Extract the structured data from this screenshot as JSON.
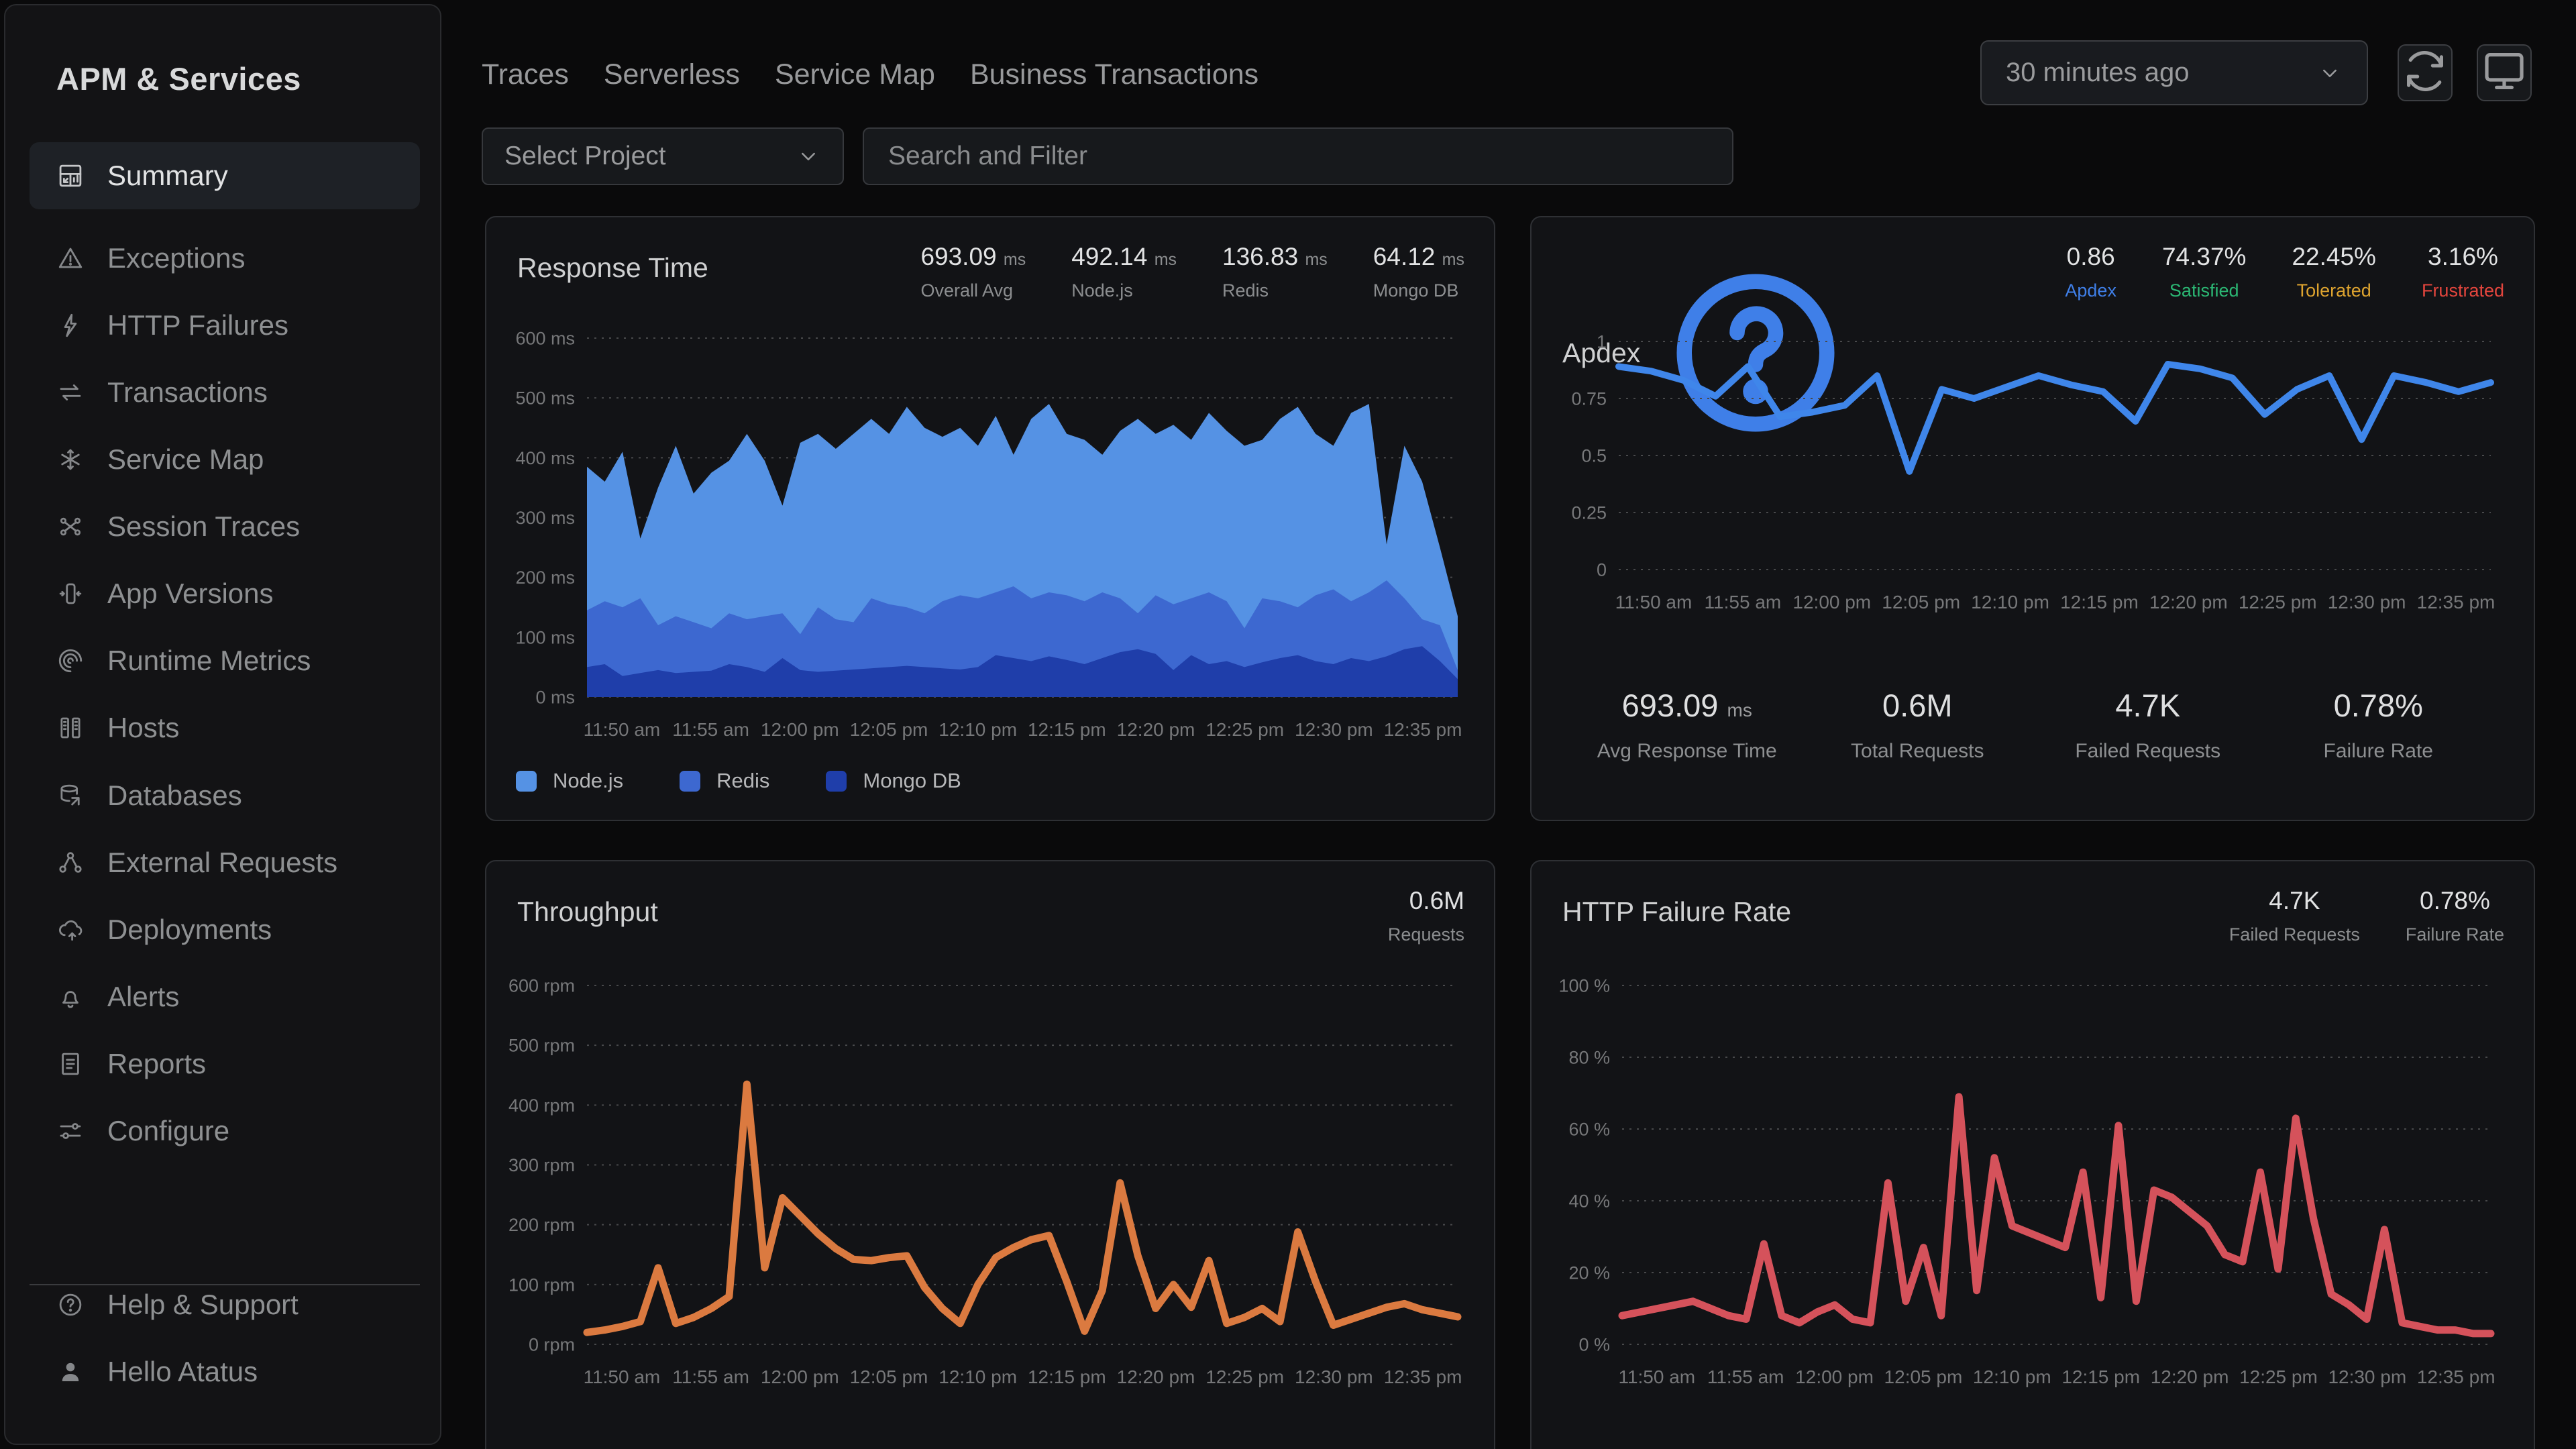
{
  "sidebar": {
    "title": "APM & Services",
    "items": [
      {
        "label": "Summary",
        "icon": "grid-dashboard"
      },
      {
        "label": "Exceptions",
        "icon": "warning-triangle"
      },
      {
        "label": "HTTP Failures",
        "icon": "lightning"
      },
      {
        "label": "Transactions",
        "icon": "swap-arrows"
      },
      {
        "label": "Service Map",
        "icon": "snowflake"
      },
      {
        "label": "Session Traces",
        "icon": "node-cross"
      },
      {
        "label": "App Versions",
        "icon": "mobile-arrows"
      },
      {
        "label": "Runtime Metrics",
        "icon": "concentric-arcs"
      },
      {
        "label": "Hosts",
        "icon": "server-columns"
      },
      {
        "label": "Databases",
        "icon": "database-cylinder"
      },
      {
        "label": "External Requests",
        "icon": "share-nodes"
      },
      {
        "label": "Deployments",
        "icon": "cloud-upload"
      },
      {
        "label": "Alerts",
        "icon": "bell"
      },
      {
        "label": "Reports",
        "icon": "document-lines"
      },
      {
        "label": "Configure",
        "icon": "sliders"
      }
    ],
    "footer_items": [
      {
        "label": "Help & Support",
        "icon": "question-circle-gray"
      },
      {
        "label": "Hello Atatus",
        "icon": "person"
      }
    ]
  },
  "topnav": {
    "tabs": [
      {
        "label": "Traces"
      },
      {
        "label": "Serverless"
      },
      {
        "label": "Service Map"
      },
      {
        "label": "Business Transactions"
      }
    ],
    "time_range": "30 minutes ago"
  },
  "filters": {
    "project_placeholder": "Select Project",
    "search_placeholder": "Search and Filter"
  },
  "panels": {
    "response_time": {
      "title": "Response Time",
      "stats": [
        {
          "value": "693.09",
          "unit": "ms",
          "label": "Overall Avg"
        },
        {
          "value": "492.14",
          "unit": "ms",
          "label": "Node.js"
        },
        {
          "value": "136.83",
          "unit": "ms",
          "label": "Redis"
        },
        {
          "value": "64.12",
          "unit": "ms",
          "label": "Mongo DB"
        }
      ],
      "legend": [
        {
          "label": "Node.js",
          "color": "#5592e4"
        },
        {
          "label": "Redis",
          "color": "#3d68d0"
        },
        {
          "label": "Mongo DB",
          "color": "#1f3eaa"
        }
      ]
    },
    "apdex": {
      "title": "Apdex",
      "stats": [
        {
          "value": "0.86",
          "label": "Apdex",
          "color": "#3f7fe8"
        },
        {
          "value": "74.37%",
          "label": "Satisfied",
          "color": "#2bb673"
        },
        {
          "value": "22.45%",
          "label": "Tolerated",
          "color": "#dda32f"
        },
        {
          "value": "3.16%",
          "label": "Frustrated",
          "color": "#e2453d"
        }
      ],
      "bottom_stats": [
        {
          "value": "693.09",
          "unit": "ms",
          "label": "Avg Response Time"
        },
        {
          "value": "0.6M",
          "unit": "",
          "label": "Total Requests"
        },
        {
          "value": "4.7K",
          "unit": "",
          "label": "Failed Requests"
        },
        {
          "value": "0.78%",
          "unit": "",
          "label": "Failure Rate"
        }
      ]
    },
    "throughput": {
      "title": "Throughput",
      "stats": [
        {
          "value": "0.6M",
          "label": "Requests"
        }
      ]
    },
    "http_failure_rate": {
      "title": "HTTP Failure Rate",
      "stats": [
        {
          "value": "4.7K",
          "label": "Failed Requests"
        },
        {
          "value": "0.78%",
          "label": "Failure Rate"
        }
      ]
    }
  },
  "chart_data": [
    {
      "id": "response_time",
      "type": "area",
      "stacked": true,
      "title": "Response Time",
      "ylabel": "ms",
      "ylim": [
        0,
        600
      ],
      "y_tick_values": [
        0,
        100,
        200,
        300,
        400,
        500,
        600
      ],
      "y_tick_labels": [
        "0 ms",
        "100 ms",
        "200 ms",
        "300 ms",
        "400 ms",
        "500 ms",
        "600 ms"
      ],
      "x_tick_labels": [
        "11:50 am",
        "11:55 am",
        "12:00 pm",
        "12:05 pm",
        "12:10 pm",
        "12:15 pm",
        "12:20 pm",
        "12:25 pm",
        "12:30 pm",
        "12:35 pm"
      ],
      "grid": true,
      "legend_position": "bottom",
      "series": [
        {
          "name": "Node.js",
          "color": "#5592e4",
          "cum_values": [
            385,
            360,
            410,
            265,
            350,
            420,
            340,
            375,
            395,
            440,
            395,
            320,
            425,
            440,
            415,
            440,
            465,
            440,
            485,
            450,
            435,
            450,
            420,
            470,
            405,
            465,
            490,
            440,
            430,
            405,
            445,
            465,
            440,
            455,
            430,
            475,
            445,
            420,
            430,
            465,
            485,
            440,
            420,
            475,
            490,
            255,
            420,
            360,
            250,
            135
          ]
        },
        {
          "name": "Redis",
          "color": "#3d68d0",
          "cum_values": [
            145,
            160,
            150,
            165,
            120,
            135,
            125,
            115,
            140,
            130,
            135,
            140,
            105,
            150,
            130,
            125,
            165,
            155,
            150,
            140,
            160,
            170,
            165,
            175,
            185,
            165,
            175,
            170,
            160,
            175,
            165,
            140,
            170,
            155,
            165,
            175,
            160,
            115,
            165,
            160,
            150,
            170,
            180,
            160,
            175,
            195,
            165,
            130,
            120,
            45
          ]
        },
        {
          "name": "Mongo DB",
          "color": "#1f3eaa",
          "cum_values": [
            50,
            55,
            35,
            40,
            45,
            40,
            42,
            44,
            55,
            50,
            42,
            65,
            45,
            42,
            44,
            46,
            48,
            50,
            52,
            50,
            48,
            46,
            50,
            70,
            65,
            60,
            68,
            62,
            55,
            65,
            75,
            80,
            72,
            45,
            70,
            55,
            60,
            50,
            58,
            65,
            70,
            60,
            55,
            65,
            60,
            68,
            80,
            85,
            60,
            30
          ]
        }
      ]
    },
    {
      "id": "apdex",
      "type": "line",
      "title": "Apdex",
      "color": "#3f86ea",
      "stroke_width": 10,
      "ylim": [
        0,
        1
      ],
      "y_tick_values": [
        0,
        0.25,
        0.5,
        0.75,
        1
      ],
      "y_tick_labels": [
        "0",
        "0.25",
        "0.5",
        "0.75",
        "1"
      ],
      "x_tick_labels": [
        "11:50 am",
        "11:55 am",
        "12:00 pm",
        "12:05 pm",
        "12:10 pm",
        "12:15 pm",
        "12:20 pm",
        "12:25 pm",
        "12:30 pm",
        "12:35 pm"
      ],
      "grid": true,
      "values": [
        0.89,
        0.87,
        0.83,
        0.76,
        0.89,
        0.67,
        0.69,
        0.72,
        0.85,
        0.43,
        0.79,
        0.75,
        0.8,
        0.85,
        0.81,
        0.78,
        0.65,
        0.9,
        0.88,
        0.84,
        0.68,
        0.79,
        0.85,
        0.57,
        0.85,
        0.82,
        0.78,
        0.82
      ]
    },
    {
      "id": "throughput",
      "type": "line",
      "title": "Throughput",
      "ylabel": "rpm",
      "color": "#db7a40",
      "stroke_width": 11,
      "ylim": [
        0,
        600
      ],
      "y_tick_values": [
        0,
        100,
        200,
        300,
        400,
        500,
        600
      ],
      "y_tick_labels": [
        "0 rpm",
        "100 rpm",
        "200 rpm",
        "300 rpm",
        "400 rpm",
        "500 rpm",
        "600 rpm"
      ],
      "x_tick_labels": [
        "11:50 am",
        "11:55 am",
        "12:00 pm",
        "12:05 pm",
        "12:10 pm",
        "12:15 pm",
        "12:20 pm",
        "12:25 pm",
        "12:30 pm",
        "12:35 pm"
      ],
      "grid": true,
      "values": [
        20,
        24,
        30,
        38,
        128,
        35,
        45,
        60,
        80,
        435,
        128,
        245,
        215,
        185,
        160,
        142,
        140,
        145,
        148,
        95,
        60,
        35,
        100,
        145,
        162,
        175,
        182,
        105,
        22,
        90,
        270,
        148,
        60,
        100,
        62,
        140,
        35,
        45,
        60,
        38,
        188,
        105,
        32,
        42,
        52,
        62,
        68,
        58,
        52,
        46
      ]
    },
    {
      "id": "http_failure_rate",
      "type": "line",
      "title": "HTTP Failure Rate",
      "ylabel": "%",
      "color": "#d5525b",
      "stroke_width": 11,
      "ylim": [
        0,
        100
      ],
      "y_tick_values": [
        0,
        20,
        40,
        60,
        80,
        100
      ],
      "y_tick_labels": [
        "0 %",
        "20 %",
        "40 %",
        "60 %",
        "80 %",
        "100 %"
      ],
      "x_tick_labels": [
        "11:50 am",
        "11:55 am",
        "12:00 pm",
        "12:05 pm",
        "12:10 pm",
        "12:15 pm",
        "12:20 pm",
        "12:25 pm",
        "12:30 pm",
        "12:35 pm"
      ],
      "grid": true,
      "values": [
        8,
        9,
        10,
        11,
        12,
        10,
        8,
        7,
        28,
        8,
        6,
        9,
        11,
        7,
        6,
        45,
        12,
        27,
        8,
        69,
        15,
        52,
        33,
        31,
        29,
        27,
        48,
        13,
        61,
        12,
        43,
        41,
        37,
        33,
        25,
        23,
        48,
        21,
        63,
        35,
        14,
        11,
        7,
        32,
        6,
        5,
        4,
        4,
        3,
        3
      ]
    }
  ]
}
